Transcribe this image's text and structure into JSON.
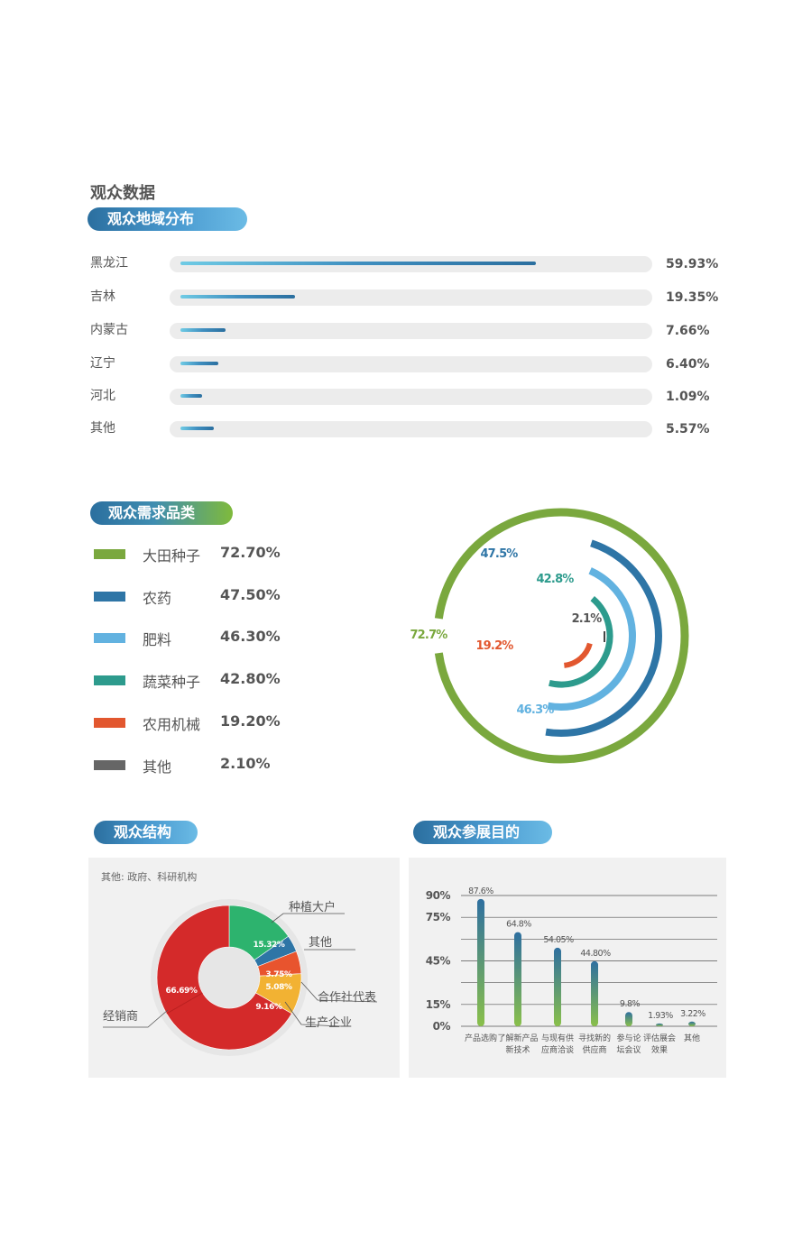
{
  "page_title": "观众数据",
  "region": {
    "heading": "观众地域分布",
    "items": [
      {
        "label": "黑龙江",
        "value": 59.93,
        "display": "59.93%"
      },
      {
        "label": "吉林",
        "value": 19.35,
        "display": "19.35%"
      },
      {
        "label": "内蒙古",
        "value": 7.66,
        "display": "7.66%"
      },
      {
        "label": "辽宁",
        "value": 6.4,
        "display": "6.40%"
      },
      {
        "label": "河北",
        "value": 1.09,
        "display": "1.09%"
      },
      {
        "label": "其他",
        "value": 5.57,
        "display": "5.57%"
      }
    ]
  },
  "demand": {
    "heading": "观众需求品类",
    "items": [
      {
        "label": "大田种子",
        "value": 72.7,
        "display": "72.70%",
        "ring_label": "72.7%",
        "color": "#7aa83e"
      },
      {
        "label": "农药",
        "value": 47.5,
        "display": "47.50%",
        "ring_label": "47.5%",
        "color": "#2e75a6"
      },
      {
        "label": "肥料",
        "value": 46.3,
        "display": "46.30%",
        "ring_label": "46.3%",
        "color": "#62b2e0"
      },
      {
        "label": "蔬菜种子",
        "value": 42.8,
        "display": "42.80%",
        "ring_label": "42.8%",
        "color": "#2d9b8d"
      },
      {
        "label": "农用机械",
        "value": 19.2,
        "display": "19.20%",
        "ring_label": "19.2%",
        "color": "#e2572f"
      },
      {
        "label": "其他",
        "value": 2.1,
        "display": "2.10%",
        "ring_label": "2.1%",
        "color": "#666666"
      }
    ]
  },
  "structure": {
    "heading": "观众结构",
    "note": "其他: 政府、科研机构",
    "slices": [
      {
        "label": "种植大户",
        "value": 15.32,
        "display": "15.32%",
        "color": "#2db36e"
      },
      {
        "label": "其他",
        "value": 3.75,
        "display": "3.75%",
        "color": "#2e75a6"
      },
      {
        "label": "合作社代表",
        "value": 5.08,
        "display": "5.08%",
        "color": "#e8542e"
      },
      {
        "label": "生产企业",
        "value": 9.16,
        "display": "9.16%",
        "color": "#f2b233"
      },
      {
        "label": "经销商",
        "value": 66.69,
        "display": "66.69%",
        "color": "#d42a2a"
      }
    ]
  },
  "purpose": {
    "heading": "观众参展目的",
    "yticks": [
      "90%",
      "75%",
      "45%",
      "15%",
      "0%"
    ],
    "bars": [
      {
        "label": [
          "产品选购"
        ],
        "value": 87.6,
        "display": "87.6%"
      },
      {
        "label": [
          "了解新产品",
          "新技术"
        ],
        "value": 64.8,
        "display": "64.8%"
      },
      {
        "label": [
          "与现有供",
          "应商洽谈"
        ],
        "value": 54.05,
        "display": "54.05%"
      },
      {
        "label": [
          "寻找新的",
          "供应商"
        ],
        "value": 44.8,
        "display": "44.80%"
      },
      {
        "label": [
          "参与论",
          "坛会议"
        ],
        "value": 9.8,
        "display": "9.8%"
      },
      {
        "label": [
          "评估展会",
          "效果"
        ],
        "value": 1.93,
        "display": "1.93%"
      },
      {
        "label": [
          "其他"
        ],
        "value": 3.22,
        "display": "3.22%"
      }
    ]
  },
  "chart_data": [
    {
      "type": "bar",
      "title": "观众地域分布",
      "categories": [
        "黑龙江",
        "吉林",
        "内蒙古",
        "辽宁",
        "河北",
        "其他"
      ],
      "values": [
        59.93,
        19.35,
        7.66,
        6.4,
        1.09,
        5.57
      ],
      "orientation": "horizontal",
      "unit": "%"
    },
    {
      "type": "bar",
      "title": "观众需求品类",
      "style": "radial",
      "categories": [
        "大田种子",
        "农药",
        "肥料",
        "蔬菜种子",
        "农用机械",
        "其他"
      ],
      "values": [
        72.7,
        47.5,
        46.3,
        42.8,
        19.2,
        2.1
      ],
      "unit": "%",
      "legend_position": "left"
    },
    {
      "type": "pie",
      "title": "观众结构",
      "style": "donut",
      "categories": [
        "种植大户",
        "其他",
        "合作社代表",
        "生产企业",
        "经销商"
      ],
      "values": [
        15.32,
        3.75,
        5.08,
        9.16,
        66.69
      ],
      "unit": "%"
    },
    {
      "type": "bar",
      "title": "观众参展目的",
      "categories": [
        "产品选购",
        "了解新产品新技术",
        "与现有供应商洽谈",
        "寻找新的供应商",
        "参与论坛会议",
        "评估展会效果",
        "其他"
      ],
      "values": [
        87.6,
        64.8,
        54.05,
        44.8,
        9.8,
        1.93,
        3.22
      ],
      "ylim": [
        0,
        90
      ],
      "unit": "%",
      "grid": true
    }
  ]
}
